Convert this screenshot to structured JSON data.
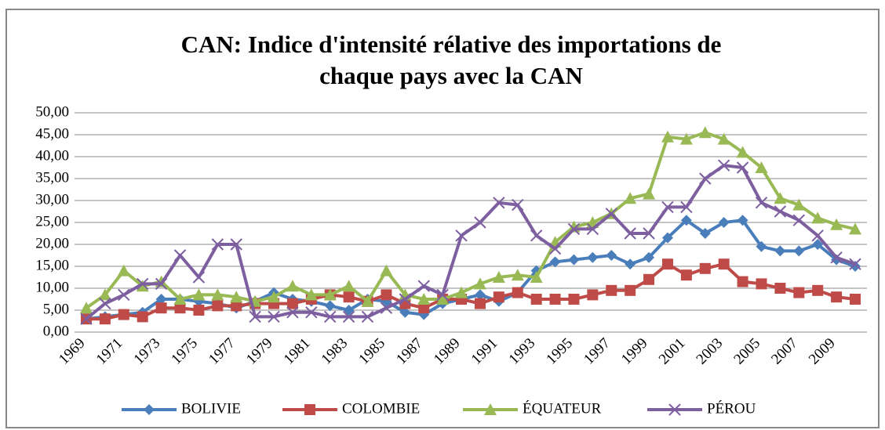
{
  "chart_data": {
    "type": "line",
    "title": [
      "CAN: Indice d'intensité rélative des importations de",
      "chaque pays avec la CAN"
    ],
    "categories": [
      "1969",
      null,
      "1971",
      null,
      "1973",
      null,
      "1975",
      null,
      "1977",
      null,
      "1979",
      null,
      "1981",
      null,
      "1983",
      null,
      "1985",
      null,
      "1987",
      null,
      "1989",
      null,
      "1991",
      null,
      "1993",
      null,
      "1995",
      null,
      "1997",
      null,
      "1999",
      null,
      "2001",
      null,
      "2003",
      null,
      "2005",
      null,
      "2007",
      null,
      "2009",
      null
    ],
    "series": [
      {
        "name": "BOLIVIE",
        "color": "#4a7ebb",
        "marker": "diamond",
        "values": [
          3,
          3.5,
          4,
          4.5,
          7.5,
          7.5,
          7,
          6.5,
          5.5,
          7,
          9,
          7.5,
          7,
          6,
          5,
          7.5,
          7,
          4.5,
          4,
          6.5,
          7.5,
          8.5,
          7,
          9,
          14,
          16,
          16.5,
          17,
          17.5,
          15.5,
          17,
          21.5,
          25.5,
          22.5,
          25,
          25.5,
          19.5,
          18.5,
          18.5,
          20,
          16.5,
          15
        ]
      },
      {
        "name": "COLOMBIE",
        "color": "#be4b48",
        "marker": "square",
        "values": [
          3,
          3,
          4,
          3.5,
          5.5,
          5.5,
          5,
          6,
          6,
          6.5,
          6.5,
          6.5,
          7.5,
          8.5,
          8,
          7,
          8.5,
          6.5,
          5.5,
          7.5,
          7.5,
          6.5,
          8,
          9,
          7.5,
          7.5,
          7.5,
          8.5,
          9.5,
          9.5,
          12,
          15.5,
          13,
          14.5,
          15.5,
          11.5,
          11,
          10,
          9,
          9.5,
          8,
          7.5
        ]
      },
      {
        "name": "ÉQUATEUR",
        "color": "#98b954",
        "marker": "triangle",
        "values": [
          5.5,
          8.5,
          14,
          10.5,
          11.5,
          7.5,
          8.5,
          8.5,
          8,
          7,
          8,
          10.5,
          8.5,
          8.5,
          10.5,
          7,
          14,
          8.5,
          7.5,
          7.5,
          9,
          11,
          12.5,
          13,
          12.5,
          20.5,
          24,
          25,
          27,
          30.5,
          31.5,
          44.5,
          44,
          45.5,
          44,
          41,
          37.5,
          30.5,
          29,
          26,
          24.5,
          23.5
        ]
      },
      {
        "name": "PÉROU",
        "color": "#7d5fa0",
        "marker": "x",
        "values": [
          3,
          6.5,
          8.5,
          11,
          11,
          17.5,
          12.5,
          20,
          20,
          3.5,
          3.5,
          4.5,
          4.5,
          3.5,
          3.5,
          3.5,
          5.5,
          7.5,
          10.5,
          8.5,
          22,
          25,
          29.5,
          29,
          22,
          19,
          23.5,
          23.5,
          27,
          22.5,
          22.5,
          28.5,
          28.5,
          35,
          38,
          37.5,
          29.5,
          27.5,
          25.5,
          22,
          17,
          15.5
        ]
      }
    ],
    "ylim": [
      0,
      50
    ],
    "yticks": [
      {
        "value": 0,
        "label": "0,00"
      },
      {
        "value": 5,
        "label": "5,00"
      },
      {
        "value": 10,
        "label": "10,00"
      },
      {
        "value": 15,
        "label": "15,00"
      },
      {
        "value": 20,
        "label": "20,00"
      },
      {
        "value": 25,
        "label": "25,00"
      },
      {
        "value": 30,
        "label": "30,00"
      },
      {
        "value": 35,
        "label": "35,00"
      },
      {
        "value": 40,
        "label": "40,00"
      },
      {
        "value": 45,
        "label": "45,00"
      },
      {
        "value": 50,
        "label": "50,00"
      }
    ],
    "grid": true,
    "legend": "bottom"
  }
}
